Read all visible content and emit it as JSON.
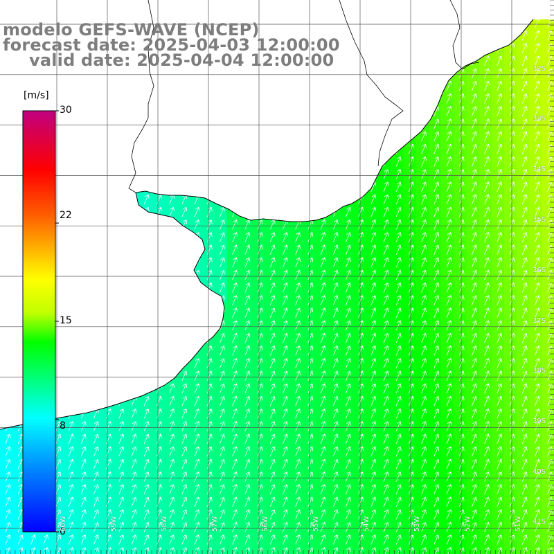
{
  "title": {
    "line1": "modelo GEFS-WAVE (NCEP)",
    "line2": "forecast date: 2025-04-03 12:00:00",
    "line3": "valid date: 2025-04-04 12:00:00"
  },
  "colorbar": {
    "unit": "[m/s]",
    "ticks": [
      "30",
      "22",
      "15",
      "8",
      "0"
    ],
    "min": 0,
    "max": 30
  },
  "lat_labels": [
    "32S",
    "33S",
    "34S",
    "35S",
    "36S",
    "37S",
    "38S",
    "39S",
    "40S",
    "41S"
  ],
  "lon_labels": [
    "60W",
    "59W",
    "58W",
    "57W",
    "56W",
    "55W",
    "54W",
    "53W",
    "52W",
    "51W"
  ],
  "colors": {
    "land": "#ffffff",
    "grid": "#555555",
    "coast": "#000000",
    "arrow": "#ffffff"
  },
  "wind_field": {
    "variable": "wind speed",
    "unit": "m/s",
    "direction": "NNE",
    "southwest_speed": 7,
    "east_speed": 16
  }
}
